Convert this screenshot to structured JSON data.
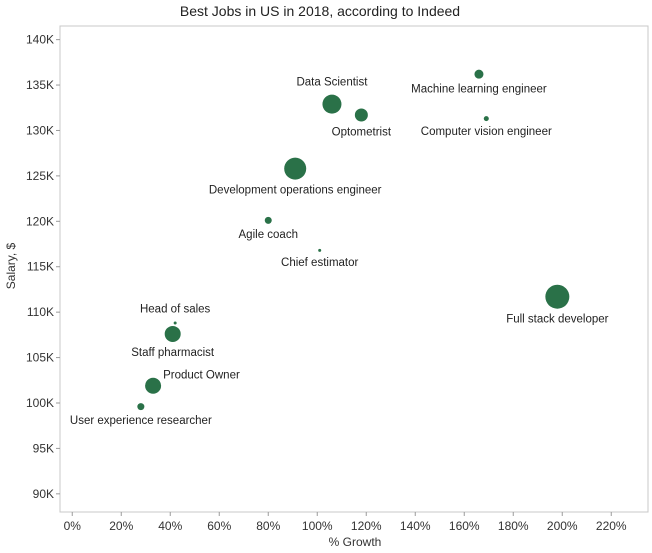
{
  "chart_data": {
    "type": "scatter",
    "title": "Best Jobs in US in 2018, according to Indeed",
    "xlabel": "% Growth",
    "ylabel": "Salary, $",
    "xlim": [
      -5,
      235
    ],
    "ylim": [
      88000,
      141500
    ],
    "x_ticks": [
      0,
      20,
      40,
      60,
      80,
      100,
      120,
      140,
      160,
      180,
      200,
      220
    ],
    "x_tick_labels": [
      "0%",
      "20%",
      "40%",
      "60%",
      "80%",
      "100%",
      "120%",
      "140%",
      "160%",
      "180%",
      "200%",
      "220%"
    ],
    "y_ticks": [
      90000,
      95000,
      100000,
      105000,
      110000,
      115000,
      120000,
      125000,
      130000,
      135000,
      140000
    ],
    "y_tick_labels": [
      "90K",
      "95K",
      "100K",
      "105K",
      "110K",
      "115K",
      "120K",
      "125K",
      "130K",
      "135K",
      "140K"
    ],
    "grid": false,
    "marker_color": "#2a7148",
    "points": [
      {
        "label": "Data Scientist",
        "x": 106,
        "y": 132900,
        "size": 9.5,
        "label_pos": "above"
      },
      {
        "label": "Machine learning engineer",
        "x": 166,
        "y": 136200,
        "size": 4.5,
        "label_pos": "below"
      },
      {
        "label": "Optometrist",
        "x": 118,
        "y": 131700,
        "size": 6.5,
        "label_pos": "below"
      },
      {
        "label": "Computer vision engineer",
        "x": 169,
        "y": 131300,
        "size": 2.5,
        "label_pos": "below"
      },
      {
        "label": "Development operations engineer",
        "x": 91,
        "y": 125800,
        "size": 11,
        "label_pos": "below"
      },
      {
        "label": "Agile coach",
        "x": 80,
        "y": 120100,
        "size": 3.5,
        "label_pos": "below"
      },
      {
        "label": "Chief estimator",
        "x": 101,
        "y": 116800,
        "size": 1.5,
        "label_pos": "below"
      },
      {
        "label": "Full stack developer",
        "x": 198,
        "y": 111700,
        "size": 12,
        "label_pos": "below"
      },
      {
        "label": "Head of sales",
        "x": 42,
        "y": 108800,
        "size": 1.5,
        "label_pos": "above"
      },
      {
        "label": "Staff pharmacist",
        "x": 41,
        "y": 107600,
        "size": 8,
        "label_pos": "below"
      },
      {
        "label": "Product Owner",
        "x": 33,
        "y": 101900,
        "size": 8,
        "label_pos": "right"
      },
      {
        "label": "User experience researcher",
        "x": 28,
        "y": 99600,
        "size": 3.5,
        "label_pos": "below"
      }
    ]
  }
}
